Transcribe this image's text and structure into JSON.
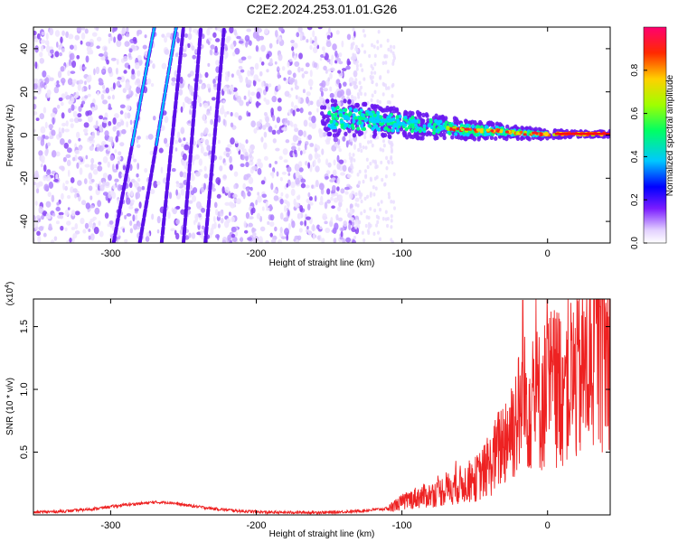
{
  "title": "C2E2.2024.253.01.01.G26",
  "chart_data": [
    {
      "type": "heatmap",
      "xlabel": "Height of straight line (km)",
      "ylabel": "Frequency (Hz)",
      "xlim": [
        -353,
        43
      ],
      "ylim": [
        -50,
        50
      ],
      "xticks": [
        -300,
        -200,
        -100,
        0
      ],
      "yticks": [
        -40,
        -20,
        0,
        20,
        40
      ],
      "colorbar": {
        "label": "Normalized spectral amplitude",
        "range": [
          0,
          1
        ],
        "ticks": [
          0.0,
          0.2,
          0.4,
          0.6,
          0.8
        ],
        "tick_labels": [
          "0.0",
          "0.2",
          "0.4",
          "0.6",
          "0.8"
        ]
      },
      "diagonal_streaks": [
        {
          "x_at_bottom": -298,
          "x_at_top": -270
        },
        {
          "x_at_bottom": -280,
          "x_at_top": -255
        },
        {
          "x_at_bottom": -265,
          "x_at_top": -250
        },
        {
          "x_at_bottom": -250,
          "x_at_top": -238
        },
        {
          "x_at_bottom": -235,
          "x_at_top": -222
        }
      ],
      "ridge": [
        {
          "x": -155,
          "y": 8
        },
        {
          "x": -140,
          "y": 8
        },
        {
          "x": -125,
          "y": 7
        },
        {
          "x": -110,
          "y": 6
        },
        {
          "x": -95,
          "y": 5
        },
        {
          "x": -80,
          "y": 4
        },
        {
          "x": -65,
          "y": 3
        },
        {
          "x": -50,
          "y": 2
        },
        {
          "x": -35,
          "y": 2
        },
        {
          "x": -20,
          "y": 1
        },
        {
          "x": -5,
          "y": 0.5
        },
        {
          "x": 10,
          "y": 0.5
        },
        {
          "x": 25,
          "y": 0.5
        },
        {
          "x": 43,
          "y": 0.5
        }
      ]
    },
    {
      "type": "line",
      "xlabel": "Height of straight line (km)",
      "ylabel": "SNR (10 * v/v)",
      "y_multiplier": "(x10",
      "y_multiplier_exp": "4",
      "y_multiplier_close": ")",
      "xlim": [
        -353,
        43
      ],
      "ylim": [
        0,
        1.72
      ],
      "xticks": [
        -300,
        -200,
        -100,
        0
      ],
      "yticks": [
        0.5,
        1.0,
        1.5
      ],
      "ytick_labels": [
        "0.5",
        "1.0",
        "1.5"
      ],
      "color": "#ee2222",
      "series": [
        {
          "x": [
            -353,
            -330,
            -310,
            -290,
            -270,
            -260,
            -250,
            -230,
            -210,
            -190,
            -170,
            -150,
            -130,
            -110,
            -100,
            -90,
            -80,
            -70,
            -60,
            -50,
            -40,
            -30,
            -20,
            -15,
            -10,
            -5,
            0,
            10,
            20,
            30,
            35,
            40,
            43
          ],
          "y": [
            0.02,
            0.03,
            0.05,
            0.08,
            0.1,
            0.1,
            0.08,
            0.05,
            0.03,
            0.02,
            0.02,
            0.02,
            0.03,
            0.05,
            0.1,
            0.14,
            0.16,
            0.2,
            0.24,
            0.28,
            0.38,
            0.6,
            0.8,
            0.9,
            0.95,
            0.9,
            1.0,
            1.05,
            1.1,
            1.2,
            1.4,
            1.3,
            1.25
          ]
        }
      ]
    }
  ]
}
